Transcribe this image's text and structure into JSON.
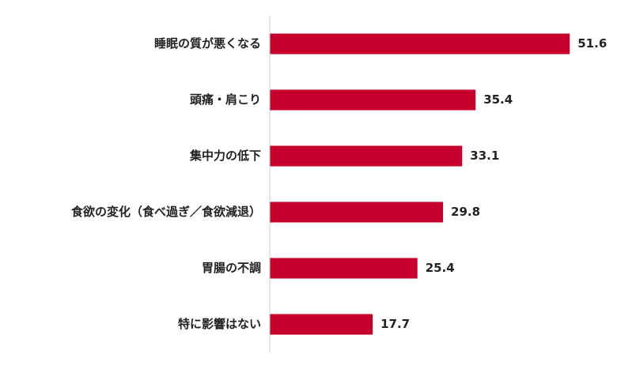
{
  "chart_data": {
    "type": "bar",
    "orientation": "horizontal",
    "categories": [
      "睡眠の質が悪くなる",
      "頭痛・肩こり",
      "集中力の低下",
      "食欲の変化（食べ過ぎ／食欲減退）",
      "胃腸の不調",
      "特に影響はない"
    ],
    "values": [
      51.6,
      35.4,
      33.1,
      29.8,
      25.4,
      17.7
    ],
    "color": "#c8002d",
    "xlim": [
      0,
      60
    ]
  }
}
